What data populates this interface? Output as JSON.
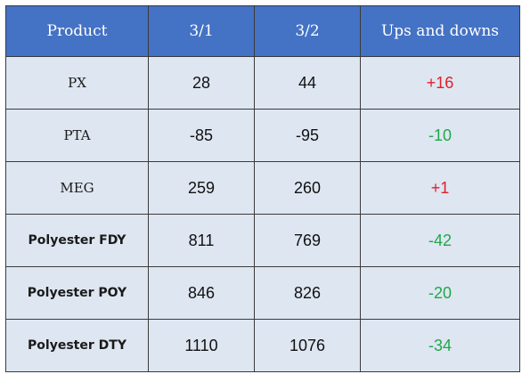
{
  "table": {
    "headers": [
      "Product",
      "3/1",
      "3/2",
      "Ups and downs"
    ],
    "rows": [
      {
        "product": "PX",
        "v1": "28",
        "v2": "44",
        "change": "+16",
        "direction": "up",
        "product_bold": false
      },
      {
        "product": "PTA",
        "v1": "-85",
        "v2": "-95",
        "change": "-10",
        "direction": "down",
        "product_bold": false
      },
      {
        "product": "MEG",
        "v1": "259",
        "v2": "260",
        "change": "+1",
        "direction": "up",
        "product_bold": false
      },
      {
        "product": "Polyester FDY",
        "v1": "811",
        "v2": "769",
        "change": "-42",
        "direction": "down",
        "product_bold": true
      },
      {
        "product": "Polyester POY",
        "v1": "846",
        "v2": "826",
        "change": "-20",
        "direction": "down",
        "product_bold": true
      },
      {
        "product": "Polyester DTY",
        "v1": "1110",
        "v2": "1076",
        "change": "-34",
        "direction": "down",
        "product_bold": true
      }
    ]
  },
  "colors": {
    "header_bg": "#4472c4",
    "cell_bg": "#dee6f1",
    "up": "#e0202a",
    "down": "#1fa84a"
  }
}
